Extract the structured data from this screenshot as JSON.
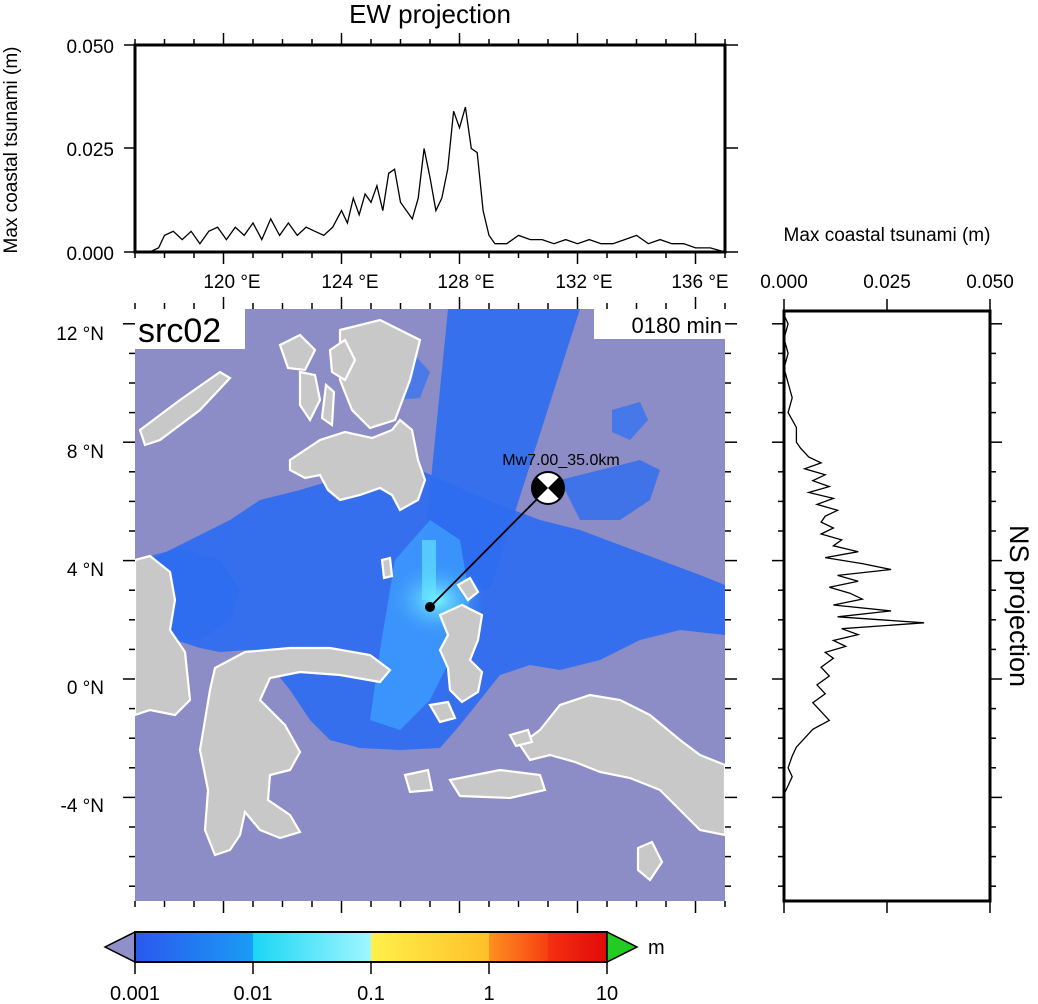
{
  "ew_panel": {
    "title": "EW projection",
    "ylabel": "Max coastal tsunami (m)",
    "y_ticks": [
      "0.000",
      "0.025",
      "0.050"
    ],
    "ylim": [
      0,
      0.05
    ],
    "xlim": [
      117,
      137
    ],
    "profile": [
      [
        117.0,
        0.0
      ],
      [
        117.5,
        0.0
      ],
      [
        117.8,
        0.001
      ],
      [
        118.0,
        0.004
      ],
      [
        118.3,
        0.005
      ],
      [
        118.6,
        0.003
      ],
      [
        118.9,
        0.005
      ],
      [
        119.2,
        0.002
      ],
      [
        119.5,
        0.005
      ],
      [
        119.8,
        0.006
      ],
      [
        120.1,
        0.003
      ],
      [
        120.4,
        0.006
      ],
      [
        120.7,
        0.004
      ],
      [
        121.0,
        0.007
      ],
      [
        121.3,
        0.003
      ],
      [
        121.6,
        0.008
      ],
      [
        121.9,
        0.004
      ],
      [
        122.2,
        0.007
      ],
      [
        122.5,
        0.004
      ],
      [
        122.8,
        0.006
      ],
      [
        123.1,
        0.005
      ],
      [
        123.4,
        0.004
      ],
      [
        123.7,
        0.006
      ],
      [
        124.0,
        0.01
      ],
      [
        124.2,
        0.007
      ],
      [
        124.4,
        0.013
      ],
      [
        124.6,
        0.009
      ],
      [
        124.8,
        0.014
      ],
      [
        125.0,
        0.012
      ],
      [
        125.2,
        0.016
      ],
      [
        125.4,
        0.01
      ],
      [
        125.6,
        0.019
      ],
      [
        125.8,
        0.02
      ],
      [
        126.0,
        0.012
      ],
      [
        126.2,
        0.01
      ],
      [
        126.4,
        0.008
      ],
      [
        126.6,
        0.013
      ],
      [
        126.8,
        0.025
      ],
      [
        127.0,
        0.018
      ],
      [
        127.2,
        0.01
      ],
      [
        127.4,
        0.013
      ],
      [
        127.6,
        0.02
      ],
      [
        127.8,
        0.034
      ],
      [
        128.0,
        0.03
      ],
      [
        128.2,
        0.035
      ],
      [
        128.4,
        0.025
      ],
      [
        128.6,
        0.024
      ],
      [
        128.8,
        0.01
      ],
      [
        129.0,
        0.004
      ],
      [
        129.2,
        0.002
      ],
      [
        129.6,
        0.002
      ],
      [
        130.0,
        0.004
      ],
      [
        130.4,
        0.003
      ],
      [
        130.8,
        0.003
      ],
      [
        131.2,
        0.002
      ],
      [
        131.6,
        0.003
      ],
      [
        132.0,
        0.002
      ],
      [
        132.4,
        0.003
      ],
      [
        132.8,
        0.002
      ],
      [
        133.2,
        0.002
      ],
      [
        133.6,
        0.003
      ],
      [
        134.0,
        0.004
      ],
      [
        134.4,
        0.002
      ],
      [
        134.8,
        0.003
      ],
      [
        135.2,
        0.002
      ],
      [
        135.6,
        0.002
      ],
      [
        136.0,
        0.001
      ],
      [
        136.5,
        0.001
      ],
      [
        137.0,
        0.0
      ]
    ]
  },
  "map_panel": {
    "source_label": "src02",
    "time_label": "0180 min",
    "lon_ticks": [
      "120 °E",
      "124 °E",
      "128 °E",
      "132 °E",
      "136 °E"
    ],
    "lat_ticks": [
      "12 °N",
      "8 °N",
      "4 °N",
      "0 °N",
      "-4 °N"
    ],
    "lon_range": [
      117,
      137
    ],
    "lat_range": [
      -7.5,
      12.5
    ],
    "epicenter_label": "Mw7.00_35.0km",
    "epicenter": {
      "lon": 127.0,
      "lat": 2.7
    },
    "mechanism_marker": {
      "lon": 131.0,
      "lat": 6.8
    },
    "colors": {
      "ocean": "#8c8cc6",
      "land": "#c8c8c8",
      "coast": "#ffffff",
      "wave_low": "#2e6df0",
      "wave_mid": "#3ea0ff",
      "wave_high": "#66f0ff"
    }
  },
  "ns_panel": {
    "title": "NS projection",
    "xlabel": "Max coastal tsunami (m)",
    "x_ticks": [
      "0.000",
      "0.025",
      "0.050"
    ],
    "xlim": [
      0,
      0.05
    ],
    "profile": [
      [
        12.3,
        0.0
      ],
      [
        12.0,
        0.001
      ],
      [
        11.5,
        0.0
      ],
      [
        11.0,
        0.001
      ],
      [
        10.5,
        0.0
      ],
      [
        10.0,
        0.001
      ],
      [
        9.5,
        0.002
      ],
      [
        9.0,
        0.001
      ],
      [
        8.5,
        0.003
      ],
      [
        8.0,
        0.003
      ],
      [
        7.8,
        0.004
      ],
      [
        7.5,
        0.006
      ],
      [
        7.3,
        0.009
      ],
      [
        7.1,
        0.005
      ],
      [
        6.9,
        0.01
      ],
      [
        6.7,
        0.007
      ],
      [
        6.5,
        0.011
      ],
      [
        6.3,
        0.006
      ],
      [
        6.1,
        0.012
      ],
      [
        5.9,
        0.008
      ],
      [
        5.7,
        0.013
      ],
      [
        5.5,
        0.01
      ],
      [
        5.3,
        0.009
      ],
      [
        5.1,
        0.012
      ],
      [
        4.9,
        0.009
      ],
      [
        4.7,
        0.014
      ],
      [
        4.5,
        0.012
      ],
      [
        4.3,
        0.018
      ],
      [
        4.1,
        0.01
      ],
      [
        3.9,
        0.019
      ],
      [
        3.7,
        0.026
      ],
      [
        3.5,
        0.013
      ],
      [
        3.3,
        0.018
      ],
      [
        3.1,
        0.011
      ],
      [
        2.9,
        0.016
      ],
      [
        2.7,
        0.019
      ],
      [
        2.5,
        0.012
      ],
      [
        2.3,
        0.026
      ],
      [
        2.1,
        0.013
      ],
      [
        1.9,
        0.034
      ],
      [
        1.7,
        0.014
      ],
      [
        1.5,
        0.018
      ],
      [
        1.3,
        0.012
      ],
      [
        1.1,
        0.015
      ],
      [
        0.9,
        0.01
      ],
      [
        0.7,
        0.012
      ],
      [
        0.4,
        0.009
      ],
      [
        0.1,
        0.011
      ],
      [
        -0.2,
        0.008
      ],
      [
        -0.5,
        0.01
      ],
      [
        -0.8,
        0.007
      ],
      [
        -1.1,
        0.009
      ],
      [
        -1.4,
        0.011
      ],
      [
        -1.7,
        0.007
      ],
      [
        -2.0,
        0.005
      ],
      [
        -2.3,
        0.003
      ],
      [
        -2.6,
        0.002
      ],
      [
        -3.0,
        0.001
      ],
      [
        -3.3,
        0.002
      ],
      [
        -3.6,
        0.001
      ],
      [
        -3.9,
        0.0
      ],
      [
        -4.5,
        0.0
      ],
      [
        -7.5,
        0.0
      ]
    ]
  },
  "colorbar": {
    "tick_labels": [
      "0.001",
      "0.01",
      "0.1",
      "1",
      "10"
    ],
    "unit": "m",
    "colors": [
      "#2a63ee",
      "#1aa6f5",
      "#7af4ff",
      "#fff04a",
      "#ffb020",
      "#f25010",
      "#e51010",
      "#22cc22",
      "#9090c8"
    ]
  }
}
